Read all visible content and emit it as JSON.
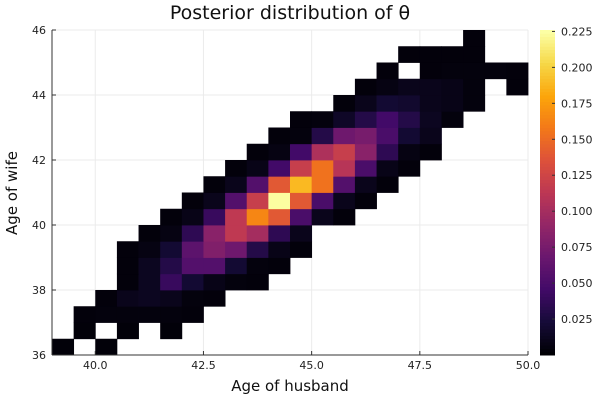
{
  "chart_data": {
    "type": "heatmap",
    "title": "Posterior distribution of θ",
    "xlabel": "Age of husband",
    "ylabel": "Age of wife",
    "xlim": [
      39,
      50
    ],
    "ylim": [
      36,
      46
    ],
    "bin_width": 0.5,
    "x_ticks": [
      "40.0",
      "42.5",
      "45.0",
      "47.5",
      "50.0"
    ],
    "x_tick_values": [
      40,
      42.5,
      45,
      47.5,
      50
    ],
    "y_ticks": [
      "36",
      "38",
      "40",
      "42",
      "44",
      "46"
    ],
    "y_tick_values": [
      36,
      38,
      40,
      42,
      44,
      46
    ],
    "colorbar": {
      "colormap": "inferno",
      "clim": [
        0,
        0.226
      ],
      "ticks": [
        "0.025",
        "0.050",
        "0.075",
        "0.100",
        "0.125",
        "0.150",
        "0.175",
        "0.200",
        "0.225"
      ],
      "tick_values": [
        0.025,
        0.05,
        0.075,
        0.1,
        0.125,
        0.15,
        0.175,
        0.2,
        0.225
      ]
    },
    "grid": true,
    "bins_note_columns": [
      "x_low",
      "y_low",
      "density"
    ],
    "bins": [
      [
        39.0,
        36.0,
        0.002
      ],
      [
        40.0,
        36.0,
        0.002
      ],
      [
        39.5,
        36.5,
        0.002
      ],
      [
        40.5,
        36.5,
        0.002
      ],
      [
        41.5,
        36.5,
        0.002
      ],
      [
        39.5,
        37.0,
        0.003
      ],
      [
        40.0,
        37.0,
        0.004
      ],
      [
        40.5,
        37.0,
        0.004
      ],
      [
        41.0,
        37.0,
        0.004
      ],
      [
        41.5,
        37.0,
        0.004
      ],
      [
        42.0,
        37.0,
        0.003
      ],
      [
        40.0,
        37.5,
        0.003
      ],
      [
        40.5,
        37.5,
        0.01
      ],
      [
        41.0,
        37.5,
        0.012
      ],
      [
        41.5,
        37.5,
        0.01
      ],
      [
        42.0,
        37.5,
        0.004
      ],
      [
        42.5,
        37.5,
        0.003
      ],
      [
        40.5,
        38.0,
        0.003
      ],
      [
        41.0,
        38.0,
        0.012
      ],
      [
        41.5,
        38.0,
        0.04
      ],
      [
        42.0,
        38.0,
        0.02
      ],
      [
        42.5,
        38.0,
        0.008
      ],
      [
        43.0,
        38.0,
        0.004
      ],
      [
        43.5,
        38.0,
        0.003
      ],
      [
        40.5,
        38.5,
        0.003
      ],
      [
        41.0,
        38.5,
        0.012
      ],
      [
        41.5,
        38.5,
        0.03
      ],
      [
        42.0,
        38.5,
        0.055
      ],
      [
        42.5,
        38.5,
        0.055
      ],
      [
        43.0,
        38.5,
        0.02
      ],
      [
        43.5,
        38.5,
        0.004
      ],
      [
        44.0,
        38.5,
        0.003
      ],
      [
        40.5,
        39.0,
        0.003
      ],
      [
        41.0,
        39.0,
        0.006
      ],
      [
        41.5,
        39.0,
        0.02
      ],
      [
        42.0,
        39.0,
        0.06
      ],
      [
        42.5,
        39.0,
        0.08
      ],
      [
        43.0,
        39.0,
        0.07
      ],
      [
        43.5,
        39.0,
        0.03
      ],
      [
        44.0,
        39.0,
        0.008
      ],
      [
        44.5,
        39.0,
        0.003
      ],
      [
        41.0,
        39.5,
        0.003
      ],
      [
        41.5,
        39.5,
        0.006
      ],
      [
        42.0,
        39.5,
        0.035
      ],
      [
        42.5,
        39.5,
        0.085
      ],
      [
        43.0,
        39.5,
        0.115
      ],
      [
        43.5,
        39.5,
        0.1
      ],
      [
        44.0,
        39.5,
        0.035
      ],
      [
        44.5,
        39.5,
        0.01
      ],
      [
        41.5,
        40.0,
        0.003
      ],
      [
        42.0,
        40.0,
        0.008
      ],
      [
        42.5,
        40.0,
        0.04
      ],
      [
        43.0,
        40.0,
        0.115
      ],
      [
        43.5,
        40.0,
        0.165
      ],
      [
        44.0,
        40.0,
        0.14
      ],
      [
        44.5,
        40.0,
        0.05
      ],
      [
        45.0,
        40.0,
        0.01
      ],
      [
        45.5,
        40.0,
        0.003
      ],
      [
        42.0,
        40.5,
        0.003
      ],
      [
        42.5,
        40.5,
        0.01
      ],
      [
        43.0,
        40.5,
        0.055
      ],
      [
        43.5,
        40.5,
        0.12
      ],
      [
        44.0,
        40.5,
        0.225
      ],
      [
        44.5,
        40.5,
        0.14
      ],
      [
        45.0,
        40.5,
        0.05
      ],
      [
        45.5,
        40.5,
        0.01
      ],
      [
        46.0,
        40.5,
        0.003
      ],
      [
        42.5,
        41.0,
        0.003
      ],
      [
        43.0,
        41.0,
        0.01
      ],
      [
        43.5,
        41.0,
        0.055
      ],
      [
        44.0,
        41.0,
        0.14
      ],
      [
        44.5,
        41.0,
        0.19
      ],
      [
        45.0,
        41.0,
        0.155
      ],
      [
        45.5,
        41.0,
        0.055
      ],
      [
        46.0,
        41.0,
        0.01
      ],
      [
        46.5,
        41.0,
        0.003
      ],
      [
        43.0,
        41.5,
        0.003
      ],
      [
        43.5,
        41.5,
        0.008
      ],
      [
        44.0,
        41.5,
        0.045
      ],
      [
        44.5,
        41.5,
        0.12
      ],
      [
        45.0,
        41.5,
        0.155
      ],
      [
        45.5,
        41.5,
        0.11
      ],
      [
        46.0,
        41.5,
        0.05
      ],
      [
        46.5,
        41.5,
        0.008
      ],
      [
        47.0,
        41.5,
        0.003
      ],
      [
        43.5,
        42.0,
        0.003
      ],
      [
        44.0,
        42.0,
        0.006
      ],
      [
        44.5,
        42.0,
        0.045
      ],
      [
        45.0,
        42.0,
        0.105
      ],
      [
        45.5,
        42.0,
        0.12
      ],
      [
        46.0,
        42.0,
        0.085
      ],
      [
        46.5,
        42.0,
        0.035
      ],
      [
        47.0,
        42.0,
        0.006
      ],
      [
        47.5,
        42.0,
        0.003
      ],
      [
        44.0,
        42.5,
        0.003
      ],
      [
        44.5,
        42.5,
        0.004
      ],
      [
        45.0,
        42.5,
        0.03
      ],
      [
        45.5,
        42.5,
        0.07
      ],
      [
        46.0,
        42.5,
        0.075
      ],
      [
        46.5,
        42.5,
        0.05
      ],
      [
        47.0,
        42.5,
        0.02
      ],
      [
        47.5,
        42.5,
        0.01
      ],
      [
        44.5,
        43.0,
        0.003
      ],
      [
        45.0,
        43.0,
        0.004
      ],
      [
        45.5,
        43.0,
        0.015
      ],
      [
        46.0,
        43.0,
        0.03
      ],
      [
        46.5,
        43.0,
        0.045
      ],
      [
        47.0,
        43.0,
        0.03
      ],
      [
        47.5,
        43.0,
        0.012
      ],
      [
        48.0,
        43.0,
        0.004
      ],
      [
        45.5,
        43.5,
        0.003
      ],
      [
        46.0,
        43.5,
        0.01
      ],
      [
        46.5,
        43.5,
        0.02
      ],
      [
        47.0,
        43.5,
        0.018
      ],
      [
        47.5,
        43.5,
        0.01
      ],
      [
        48.0,
        43.5,
        0.008
      ],
      [
        48.5,
        43.5,
        0.004
      ],
      [
        46.0,
        44.0,
        0.003
      ],
      [
        46.5,
        44.0,
        0.006
      ],
      [
        47.0,
        44.0,
        0.01
      ],
      [
        47.5,
        44.0,
        0.01
      ],
      [
        48.0,
        44.0,
        0.008
      ],
      [
        48.5,
        44.0,
        0.004
      ],
      [
        49.5,
        44.0,
        0.003
      ],
      [
        46.5,
        44.5,
        0.003
      ],
      [
        47.5,
        44.5,
        0.003
      ],
      [
        48.0,
        44.5,
        0.004
      ],
      [
        48.5,
        44.5,
        0.004
      ],
      [
        49.0,
        44.5,
        0.004
      ],
      [
        49.5,
        44.5,
        0.003
      ],
      [
        47.0,
        45.0,
        0.003
      ],
      [
        47.5,
        45.0,
        0.003
      ],
      [
        48.0,
        45.0,
        0.003
      ],
      [
        48.5,
        45.0,
        0.003
      ],
      [
        48.5,
        45.5,
        0.003
      ]
    ]
  }
}
